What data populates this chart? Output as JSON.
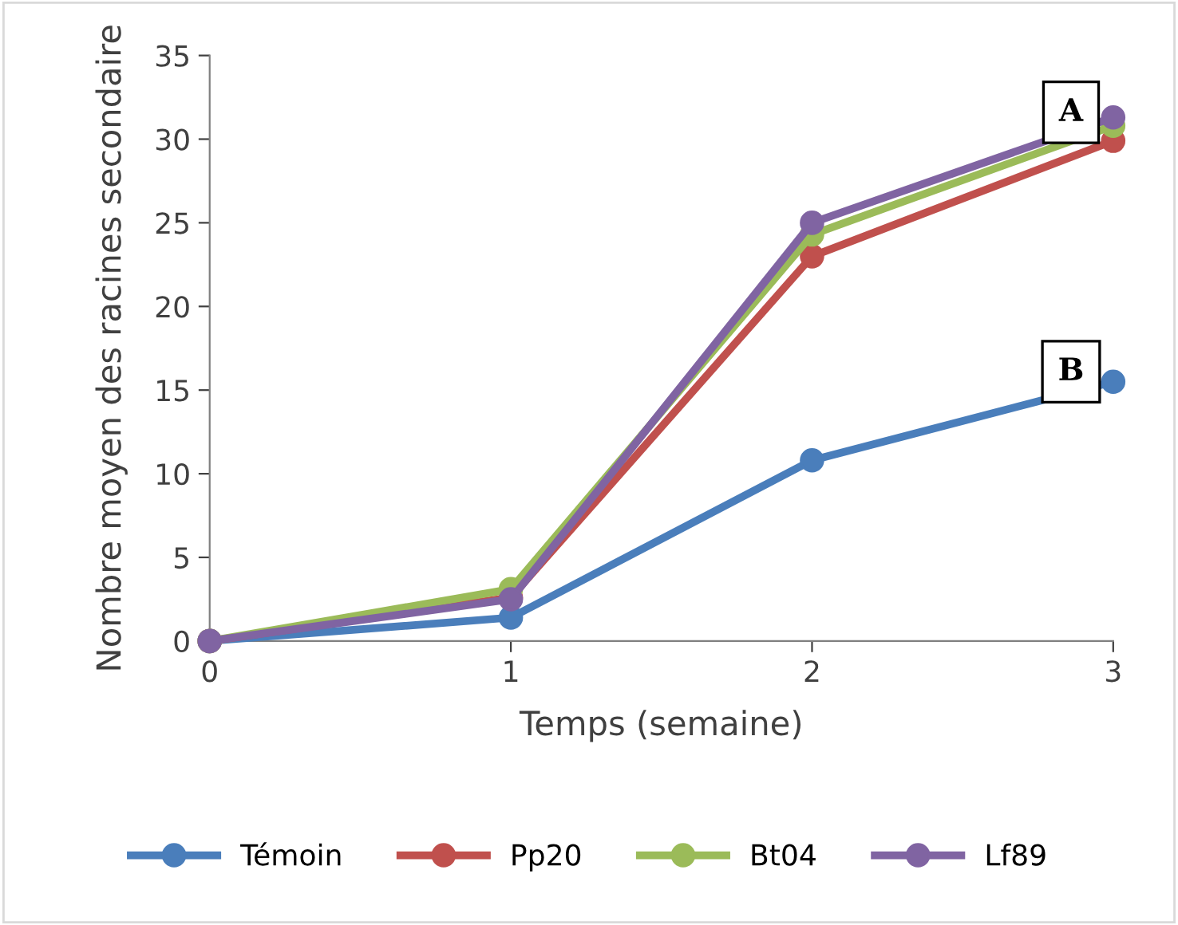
{
  "chart_data": {
    "type": "line",
    "xlabel": "Temps (semaine)",
    "ylabel": "Nombre moyen des racines secondaire",
    "x": [
      0,
      1,
      2,
      3
    ],
    "xlim": [
      0,
      3
    ],
    "xticks": [
      0,
      1,
      2,
      3
    ],
    "ylim": [
      0,
      35
    ],
    "yticks": [
      0,
      5,
      10,
      15,
      20,
      25,
      30,
      35
    ],
    "grid": false,
    "legend": "bottom",
    "marker": "circle",
    "line_style": "solid",
    "series": [
      {
        "name": "Témoin",
        "color": "#4a7ebb",
        "values": [
          0,
          1.4,
          10.8,
          15.5
        ]
      },
      {
        "name": "Pp20",
        "color": "#c0504d",
        "values": [
          0,
          2.6,
          23,
          29.9
        ]
      },
      {
        "name": "Bt04",
        "color": "#9bbb59",
        "values": [
          0,
          3.1,
          24.3,
          30.8
        ]
      },
      {
        "name": "Lf89",
        "color": "#8064a2",
        "values": [
          0,
          2.5,
          25,
          31.3
        ]
      }
    ],
    "annotations": [
      {
        "text": "A",
        "x": 2.86,
        "y": 31.6
      },
      {
        "text": "B",
        "x": 2.86,
        "y": 16.1
      }
    ]
  }
}
